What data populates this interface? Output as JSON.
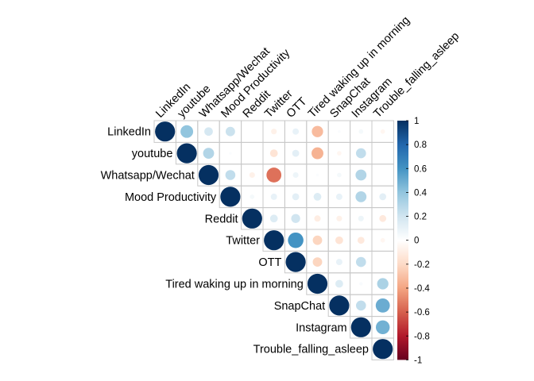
{
  "chart_data": {
    "type": "heatmap",
    "subtype": "correlation-circles-upper-triangle",
    "title": "",
    "variables": [
      "LinkedIn",
      "youtube",
      "Whatsapp/Wechat",
      "Mood Productivity",
      "Reddit",
      "Twitter",
      "OTT",
      "Tired waking up in morning",
      "SnapChat",
      "Instagram",
      "Trouble_falling_asleep"
    ],
    "matrix_upper": [
      [
        1.0,
        0.4,
        0.18,
        0.22,
        0.0,
        -0.08,
        0.1,
        -0.32,
        0.02,
        0.05,
        -0.05
      ],
      [
        null,
        1.0,
        0.3,
        0.02,
        0.0,
        -0.15,
        0.12,
        -0.35,
        -0.05,
        0.25,
        0.0
      ],
      [
        null,
        null,
        1.0,
        0.25,
        -0.08,
        -0.55,
        0.08,
        0.02,
        0.05,
        0.3,
        0.0
      ],
      [
        null,
        null,
        null,
        1.0,
        0.05,
        0.1,
        0.12,
        0.15,
        0.1,
        0.3,
        0.12
      ],
      [
        null,
        null,
        null,
        null,
        1.0,
        0.15,
        0.2,
        -0.1,
        -0.08,
        0.08,
        -0.12
      ],
      [
        null,
        null,
        null,
        null,
        null,
        1.0,
        0.6,
        -0.22,
        -0.15,
        -0.12,
        -0.05
      ],
      [
        null,
        null,
        null,
        null,
        null,
        null,
        1.0,
        -0.22,
        0.1,
        0.25,
        0.0
      ],
      [
        null,
        null,
        null,
        null,
        null,
        null,
        null,
        1.0,
        0.15,
        0.03,
        0.32
      ],
      [
        null,
        null,
        null,
        null,
        null,
        null,
        null,
        null,
        1.0,
        0.25,
        0.5
      ],
      [
        null,
        null,
        null,
        null,
        null,
        null,
        null,
        null,
        null,
        1.0,
        0.48
      ],
      [
        null,
        null,
        null,
        null,
        null,
        null,
        null,
        null,
        null,
        null,
        1.0
      ]
    ],
    "color_scale": {
      "range": [
        -1,
        1
      ],
      "ticks": [
        1,
        0.8,
        0.6,
        0.4,
        0.2,
        0,
        -0.2,
        -0.4,
        -0.6,
        -0.8,
        -1
      ],
      "tick_labels": [
        "1",
        "0.8",
        "0.6",
        "0.4",
        "0.2",
        "0",
        "-0.2",
        "-0.4",
        "-0.6",
        "-0.8",
        "-1"
      ],
      "palette": [
        "#67001F",
        "#B2182B",
        "#D6604D",
        "#F4A582",
        "#FDDBC7",
        "#FFFFFF",
        "#D1E5F0",
        "#92C5DE",
        "#4393C3",
        "#2166AC",
        "#053061"
      ]
    },
    "legend_placement": "right",
    "grid": true,
    "label_rotation_deg": -45
  }
}
